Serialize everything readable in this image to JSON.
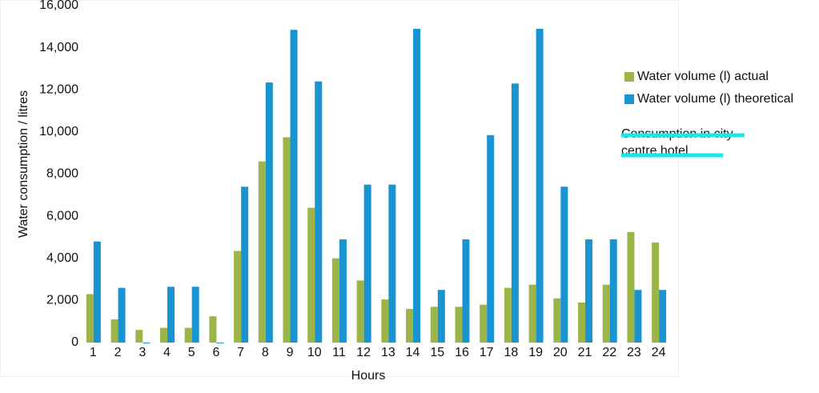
{
  "chart_data": {
    "type": "bar",
    "x_label": "Hours",
    "y_label": "Water consumption / litres",
    "categories": [
      "1",
      "2",
      "3",
      "4",
      "5",
      "6",
      "7",
      "8",
      "9",
      "10",
      "11",
      "12",
      "13",
      "14",
      "15",
      "16",
      "17",
      "18",
      "19",
      "20",
      "21",
      "22",
      "23",
      "24"
    ],
    "series": [
      {
        "name": "Water volume (l) actual",
        "color": "#9bb548",
        "values": [
          2300,
          1100,
          600,
          700,
          700,
          1250,
          4350,
          8600,
          9750,
          6400,
          4000,
          2950,
          2050,
          1600,
          1700,
          1700,
          1800,
          2600,
          2750,
          2100,
          1900,
          2750,
          5250,
          4750
        ]
      },
      {
        "name": "Water volume (l) theoretical",
        "color": "#1a93d1",
        "values": [
          4800,
          2600,
          0,
          2650,
          2650,
          0,
          7400,
          12350,
          14850,
          12400,
          4900,
          7500,
          7500,
          14900,
          2500,
          4900,
          9850,
          12300,
          14900,
          7400,
          4900,
          4900,
          2500,
          2500
        ]
      }
    ],
    "ylim": [
      0,
      16000
    ],
    "yticks": [
      0,
      {
        "value": 2000,
        "label": "2,000"
      },
      {
        "value": 4000,
        "label": "4,000"
      },
      {
        "value": 6000,
        "label": "6,000"
      },
      {
        "value": 8000,
        "label": "8,000"
      },
      {
        "value": 10000,
        "label": "10,000"
      },
      {
        "value": 12000,
        "label": "12,000"
      },
      {
        "value": 14000,
        "label": "14,000"
      },
      {
        "value": 16000,
        "label": "16,000"
      }
    ],
    "grid": false,
    "legend": "right",
    "annotation_lines": [
      "Consumption in city",
      "centre hotel"
    ]
  }
}
